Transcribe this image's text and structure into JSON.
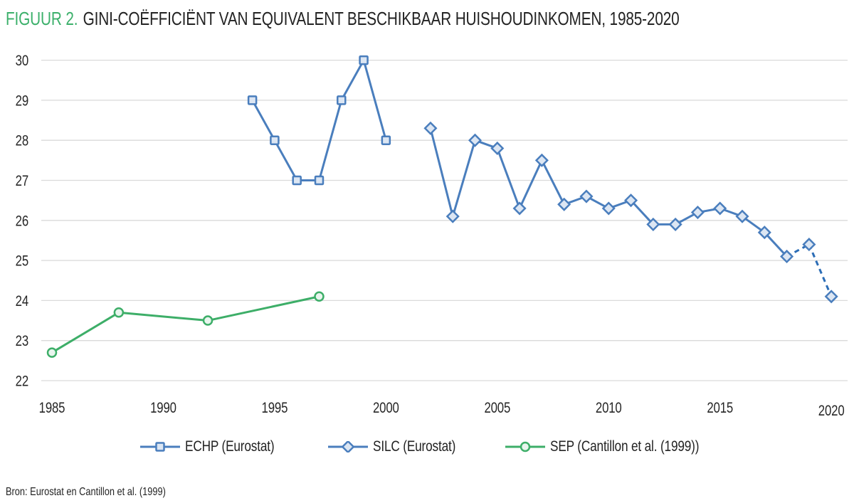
{
  "title": {
    "prefix": "FIGUUR 2.",
    "main": "GINI-COËFFICIËNT VAN EQUIVALENT BESCHIKBAAR HUISHOUDINKOMEN, 1985-2020"
  },
  "source": "Bron: Eurostat en Cantillon et al. (1999)",
  "colors": {
    "blue": "#4A7EBD",
    "blue_dash": "#2C6DB6",
    "blue_fill": "#DCE6F3",
    "green": "#3DAE68",
    "green_fill": "#E9F5EE",
    "grid": "#DADADA",
    "axis_text": "#262626",
    "title_accent": "#3CB06B"
  },
  "chart_data": {
    "type": "line",
    "title": "GINI-COËFFICIËNT VAN EQUIVALENT BESCHIKBAAR HUISHOUDINKOMEN, 1985-2020",
    "x_axis": {
      "ticks": [
        1985,
        1990,
        1995,
        2000,
        2005,
        2010,
        2015,
        2020
      ],
      "min": 1985,
      "max": 2020
    },
    "y_axis": {
      "ticks": [
        22,
        23,
        24,
        25,
        26,
        27,
        28,
        29,
        30
      ],
      "min": 22,
      "max": 30
    },
    "grid": true,
    "legend_position": "bottom",
    "series": [
      {
        "name": "ECHP (Eurostat)",
        "marker": "square",
        "color": "#4A7EBD",
        "fill": "#DCE6F3",
        "points": [
          [
            1994,
            29
          ],
          [
            1995,
            28
          ],
          [
            1996,
            27
          ],
          [
            1997,
            27
          ],
          [
            1998,
            29
          ],
          [
            1999,
            30
          ],
          [
            2000,
            28
          ]
        ]
      },
      {
        "name": "SILC (Eurostat)",
        "marker": "diamond",
        "color": "#4A7EBD",
        "fill": "#DCE6F3",
        "dashed_from": 2018,
        "dash_color": "#2C6DB6",
        "points": [
          [
            2002,
            28.3
          ],
          [
            2003,
            26.1
          ],
          [
            2004,
            28.0
          ],
          [
            2005,
            27.8
          ],
          [
            2006,
            26.3
          ],
          [
            2007,
            27.5
          ],
          [
            2008,
            26.4
          ],
          [
            2009,
            26.6
          ],
          [
            2010,
            26.3
          ],
          [
            2011,
            26.5
          ],
          [
            2012,
            25.9
          ],
          [
            2013,
            25.9
          ],
          [
            2014,
            26.2
          ],
          [
            2015,
            26.3
          ],
          [
            2016,
            26.1
          ],
          [
            2017,
            25.7
          ],
          [
            2018,
            25.1
          ],
          [
            2019,
            25.4
          ],
          [
            2020,
            24.1
          ]
        ]
      },
      {
        "name": "SEP (Cantillon et al. (1999))",
        "marker": "circle",
        "color": "#3DAE68",
        "fill": "#E9F5EE",
        "points": [
          [
            1985,
            22.7
          ],
          [
            1988,
            23.7
          ],
          [
            1992,
            23.5
          ],
          [
            1997,
            24.1
          ]
        ]
      }
    ]
  }
}
